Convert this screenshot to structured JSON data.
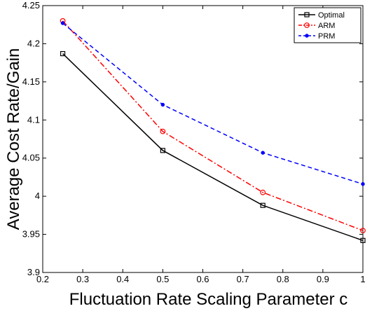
{
  "chart_data": {
    "type": "line",
    "xlabel": "Fluctuation Rate Scaling Parameter c",
    "ylabel": "Average Cost Rate/Gain",
    "xlim": [
      0.2,
      1.0
    ],
    "ylim": [
      3.9,
      4.25
    ],
    "xticks": [
      0.2,
      0.3,
      0.4,
      0.5,
      0.6,
      0.7,
      0.8,
      0.9,
      1.0
    ],
    "xtick_labels": [
      "0.2",
      "0.3",
      "0.4",
      "0.5",
      "0.6",
      "0.7",
      "0.8",
      "0.9",
      "1"
    ],
    "yticks": [
      3.9,
      3.95,
      4.0,
      4.05,
      4.1,
      4.15,
      4.2,
      4.25
    ],
    "ytick_labels": [
      "3.9",
      "3.95",
      "4",
      "4.05",
      "4.1",
      "4.15",
      "4.2",
      "4.25"
    ],
    "grid": false,
    "legend_position": "top-right",
    "x": [
      0.25,
      0.5,
      0.75,
      1.0
    ],
    "series": [
      {
        "name": "Optimal",
        "values": [
          4.187,
          4.06,
          3.988,
          3.942
        ],
        "color": "#000000",
        "linestyle": "solid",
        "marker": "square"
      },
      {
        "name": "ARM",
        "values": [
          4.23,
          4.085,
          4.005,
          3.955
        ],
        "color": "#ff0000",
        "linestyle": "dashdot",
        "marker": "circle"
      },
      {
        "name": "PRM",
        "values": [
          4.227,
          4.12,
          4.057,
          4.016
        ],
        "color": "#0000ff",
        "linestyle": "dashed",
        "marker": "dot"
      }
    ]
  }
}
